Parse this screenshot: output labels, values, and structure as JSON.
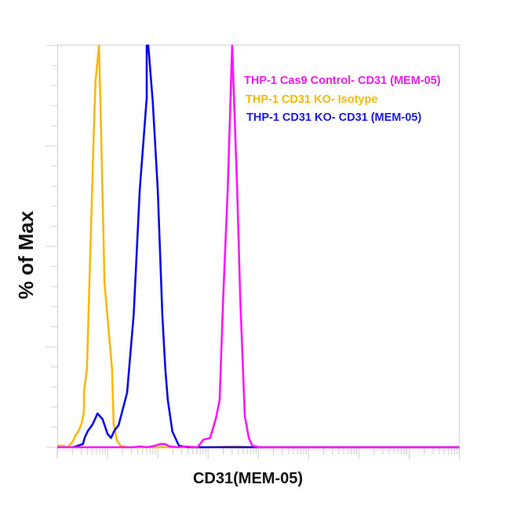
{
  "chart_data": {
    "type": "line",
    "subtype": "flow-cytometry-histogram",
    "title": "",
    "xlabel": "CD31(MEM-05)",
    "ylabel": "% of Max",
    "x_scale": "log",
    "x_decades": 8,
    "x_tick_labels": [],
    "y_tick_labels": [],
    "ylim": [
      0,
      100
    ],
    "grid": false,
    "legend_position": "top-right-inside",
    "legend": [
      {
        "label": "THP-1 Cas9 Control- CD31 (MEM-05)",
        "color": "#e81ee8"
      },
      {
        "label": "THP-1 CD31 KO- Isotype",
        "color": "#f5b800"
      },
      {
        "label": "THP-1 CD31 KO- CD31 (MEM-05)",
        "color": "#1a1ae0"
      }
    ],
    "series": [
      {
        "name": "THP-1 CD31 KO- Isotype",
        "color": "#f9b90c",
        "note": "x = position in log decades from axis origin (0-8); y = % of Max",
        "points": [
          [
            0.0,
            0.4
          ],
          [
            0.12,
            0.4
          ],
          [
            0.11,
            0.4
          ],
          [
            0.19,
            0.0
          ],
          [
            0.19,
            0.0
          ],
          [
            0.27,
            0.8
          ],
          [
            0.33,
            1.9
          ],
          [
            0.36,
            2.9
          ],
          [
            0.42,
            3.9
          ],
          [
            0.48,
            5.8
          ],
          [
            0.53,
            8.8
          ],
          [
            0.53,
            8.8
          ],
          [
            0.53,
            13.6
          ],
          [
            0.59,
            19.5
          ],
          [
            0.64,
            41.0
          ],
          [
            0.73,
            80.0
          ],
          [
            0.76,
            91.0
          ],
          [
            0.83,
            100.0
          ],
          [
            0.87,
            80.0
          ],
          [
            0.94,
            41.0
          ],
          [
            1.09,
            19.5
          ],
          [
            1.12,
            5.8
          ],
          [
            1.19,
            1.6
          ],
          [
            1.26,
            0.4
          ],
          [
            1.4,
            0.0
          ],
          [
            2.0,
            0.0
          ],
          [
            3.0,
            0.0
          ],
          [
            3.5,
            0.2
          ],
          [
            4.0,
            0.0
          ],
          [
            8.0,
            0.0
          ]
        ]
      },
      {
        "name": "THP-1 CD31 KO- CD31 (MEM-05)",
        "color": "#0a0ae6",
        "points": [
          [
            0.3,
            0.0
          ],
          [
            0.37,
            0.2
          ],
          [
            0.51,
            0.8
          ],
          [
            0.55,
            2.5
          ],
          [
            0.61,
            4.1
          ],
          [
            0.7,
            5.6
          ],
          [
            0.8,
            8.4
          ],
          [
            0.9,
            7.0
          ],
          [
            1.0,
            3.3
          ],
          [
            1.07,
            2.3
          ],
          [
            1.14,
            4.2
          ],
          [
            1.22,
            5.5
          ],
          [
            1.39,
            13.6
          ],
          [
            1.52,
            33.0
          ],
          [
            1.64,
            64.0
          ],
          [
            1.78,
            87.0
          ],
          [
            1.78,
            100.0
          ],
          [
            1.81,
            100.0
          ],
          [
            1.9,
            86.0
          ],
          [
            2.0,
            64.0
          ],
          [
            2.09,
            33.0
          ],
          [
            2.15,
            19.5
          ],
          [
            2.2,
            11.7
          ],
          [
            2.29,
            3.9
          ],
          [
            2.42,
            0.4
          ],
          [
            2.6,
            0.0
          ],
          [
            8.0,
            0.0
          ]
        ]
      },
      {
        "name": "THP-1 Cas9 Control- CD31 (MEM-05)",
        "color": "#ff14ff",
        "points": [
          [
            0.0,
            0.0
          ],
          [
            1.5,
            0.0
          ],
          [
            1.65,
            0.2
          ],
          [
            1.78,
            0.0
          ],
          [
            1.95,
            0.4
          ],
          [
            2.05,
            0.8
          ],
          [
            2.14,
            0.8
          ],
          [
            2.24,
            0.2
          ],
          [
            2.4,
            0.0
          ],
          [
            2.55,
            0.2
          ],
          [
            2.79,
            0.0
          ],
          [
            2.91,
            1.9
          ],
          [
            3.04,
            2.3
          ],
          [
            3.16,
            7.4
          ],
          [
            3.23,
            11.7
          ],
          [
            3.3,
            37.0
          ],
          [
            3.39,
            64.0
          ],
          [
            3.48,
            100.0
          ],
          [
            3.58,
            64.0
          ],
          [
            3.64,
            37.0
          ],
          [
            3.73,
            7.8
          ],
          [
            3.81,
            2.3
          ],
          [
            3.88,
            0.4
          ],
          [
            4.02,
            0.0
          ],
          [
            8.0,
            0.0
          ]
        ]
      }
    ]
  },
  "legend": {
    "items": [
      {
        "label": "THP-1 Cas9 Control- CD31 (MEM-05)",
        "color": "#e81ee8"
      },
      {
        "label": "THP-1 CD31 KO- Isotype",
        "color": "#f5b800"
      },
      {
        "label": "THP-1 CD31 KO- CD31 (MEM-05)",
        "color": "#1a1ae0"
      }
    ]
  },
  "axes": {
    "x_label": "CD31(MEM-05)",
    "y_label": "% of Max"
  }
}
